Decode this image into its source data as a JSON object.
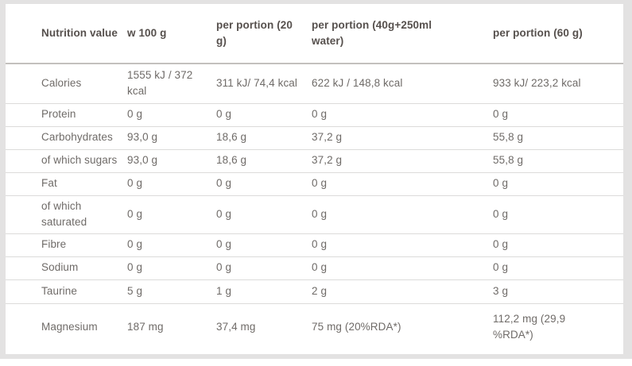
{
  "colors": {
    "page_background": "#e3e2e2",
    "card_background": "#ffffff",
    "header_text": "#56504d",
    "body_text": "#6f6b68",
    "header_rule": "#c3c0be",
    "row_rule": "#dcdbda"
  },
  "table": {
    "columns": [
      "Nutrition value",
      "w 100 g",
      "per portion (20 g)",
      "per portion (40g+250ml water)",
      "per portion (60 g)"
    ],
    "rows": [
      {
        "label": "Calories",
        "values": [
          "1555 kJ / 372 kcal",
          "311 kJ/ 74,4 kcal",
          "622 kJ / 148,8 kcal",
          "933 kJ/ 223,2 kcal"
        ]
      },
      {
        "label": "Protein",
        "values": [
          "0 g",
          "0 g",
          "0 g",
          "0 g"
        ]
      },
      {
        "label": "Carbohydrates",
        "values": [
          "93,0 g",
          "18,6 g",
          "37,2 g",
          "55,8 g"
        ]
      },
      {
        "label": "of which sugars",
        "values": [
          "93,0 g",
          "18,6 g",
          "37,2 g",
          "55,8 g"
        ]
      },
      {
        "label": "Fat",
        "values": [
          "0 g",
          "0 g",
          "0 g",
          "0 g"
        ]
      },
      {
        "label": "of which saturated",
        "values": [
          "0 g",
          "0 g",
          "0 g",
          "0 g"
        ]
      },
      {
        "label": "Fibre",
        "values": [
          "0 g",
          "0 g",
          "0 g",
          "0 g"
        ]
      },
      {
        "label": "Sodium",
        "values": [
          "0 g",
          "0 g",
          "0 g",
          "0 g"
        ]
      },
      {
        "label": "Taurine",
        "values": [
          "5 g",
          "1 g",
          "2 g",
          "3 g"
        ]
      },
      {
        "label": "Magnesium",
        "values": [
          "187 mg",
          "37,4 mg",
          "75 mg (20%RDA*)",
          "112,2 mg (29,9 %RDA*)"
        ]
      }
    ]
  }
}
